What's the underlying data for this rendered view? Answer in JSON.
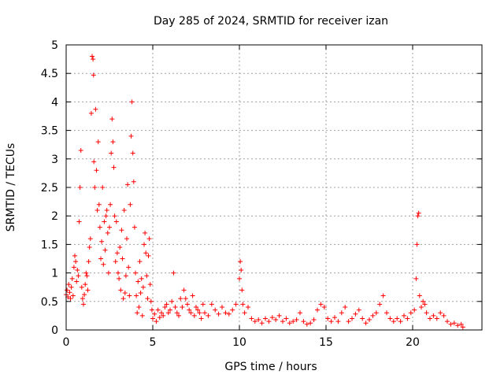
{
  "chart_data": {
    "type": "scatter",
    "title": "Day 285 of 2024, SRMTID for receiver izan",
    "xlabel": "GPS time / hours",
    "ylabel": "SRMTID / TECUs",
    "xlim": [
      0,
      24
    ],
    "ylim": [
      0,
      5
    ],
    "x_ticks": [
      0,
      5,
      10,
      15,
      20
    ],
    "x_tick_labels": [
      "0",
      "5",
      "10",
      "15",
      "20"
    ],
    "y_ticks": [
      0,
      0.5,
      1,
      1.5,
      2,
      2.5,
      3,
      3.5,
      4,
      4.5,
      5
    ],
    "y_tick_labels": [
      "0",
      "0.5",
      "1",
      "1.5",
      "2",
      "2.5",
      "3",
      "3.5",
      "4",
      "4.5",
      "5"
    ],
    "grid": true,
    "marker": "+",
    "series": [
      {
        "name": "SRMTID",
        "color": "#ff0000",
        "points": [
          [
            0.0,
            0.62
          ],
          [
            0.05,
            0.7
          ],
          [
            0.1,
            0.58
          ],
          [
            0.15,
            0.8
          ],
          [
            0.2,
            0.66
          ],
          [
            0.25,
            0.55
          ],
          [
            0.3,
            0.75
          ],
          [
            0.35,
            0.9
          ],
          [
            0.4,
            0.6
          ],
          [
            0.45,
            1.1
          ],
          [
            0.5,
            1.3
          ],
          [
            0.55,
            1.2
          ],
          [
            0.6,
            0.85
          ],
          [
            0.65,
            1.05
          ],
          [
            0.7,
            0.95
          ],
          [
            0.75,
            1.9
          ],
          [
            0.8,
            2.5
          ],
          [
            0.85,
            3.15
          ],
          [
            0.9,
            0.75
          ],
          [
            0.95,
            0.55
          ],
          [
            1.0,
            0.45
          ],
          [
            1.05,
            0.62
          ],
          [
            1.1,
            0.8
          ],
          [
            1.15,
            1.0
          ],
          [
            1.2,
            0.95
          ],
          [
            1.25,
            0.7
          ],
          [
            1.3,
            1.2
          ],
          [
            1.35,
            1.45
          ],
          [
            1.4,
            1.6
          ],
          [
            1.45,
            3.8
          ],
          [
            1.5,
            4.8
          ],
          [
            1.55,
            4.75
          ],
          [
            1.58,
            4.47
          ],
          [
            1.6,
            2.95
          ],
          [
            1.65,
            2.5
          ],
          [
            1.7,
            3.87
          ],
          [
            1.75,
            2.8
          ],
          [
            1.8,
            2.1
          ],
          [
            1.85,
            3.3
          ],
          [
            1.9,
            2.2
          ],
          [
            1.95,
            1.8
          ],
          [
            2.0,
            1.25
          ],
          [
            2.05,
            1.55
          ],
          [
            2.1,
            2.5
          ],
          [
            2.15,
            1.15
          ],
          [
            2.2,
            1.9
          ],
          [
            2.25,
            1.4
          ],
          [
            2.3,
            2.0
          ],
          [
            2.35,
            2.1
          ],
          [
            2.4,
            1.7
          ],
          [
            2.45,
            1.0
          ],
          [
            2.5,
            1.8
          ],
          [
            2.55,
            2.2
          ],
          [
            2.6,
            3.1
          ],
          [
            2.65,
            3.7
          ],
          [
            2.7,
            3.3
          ],
          [
            2.75,
            2.85
          ],
          [
            2.8,
            2.0
          ],
          [
            2.85,
            1.2
          ],
          [
            2.9,
            1.9
          ],
          [
            2.95,
            1.35
          ],
          [
            3.0,
            1.0
          ],
          [
            3.05,
            0.9
          ],
          [
            3.1,
            1.45
          ],
          [
            3.15,
            0.7
          ],
          [
            3.2,
            1.75
          ],
          [
            3.25,
            1.25
          ],
          [
            3.3,
            0.55
          ],
          [
            3.35,
            2.1
          ],
          [
            3.4,
            0.65
          ],
          [
            3.45,
            0.95
          ],
          [
            3.5,
            1.6
          ],
          [
            3.55,
            2.55
          ],
          [
            3.6,
            1.1
          ],
          [
            3.65,
            0.6
          ],
          [
            3.7,
            2.2
          ],
          [
            3.75,
            3.4
          ],
          [
            3.8,
            4.0
          ],
          [
            3.85,
            3.1
          ],
          [
            3.9,
            2.6
          ],
          [
            3.95,
            1.8
          ],
          [
            4.0,
            1.0
          ],
          [
            4.05,
            0.6
          ],
          [
            4.1,
            0.3
          ],
          [
            4.15,
            0.85
          ],
          [
            4.2,
            0.4
          ],
          [
            4.25,
            1.2
          ],
          [
            4.3,
            0.65
          ],
          [
            4.35,
            0.9
          ],
          [
            4.4,
            0.25
          ],
          [
            4.45,
            0.75
          ],
          [
            4.5,
            1.5
          ],
          [
            4.55,
            1.7
          ],
          [
            4.6,
            1.35
          ],
          [
            4.65,
            0.95
          ],
          [
            4.7,
            0.55
          ],
          [
            4.75,
            1.3
          ],
          [
            4.8,
            1.6
          ],
          [
            4.85,
            0.8
          ],
          [
            4.9,
            0.5
          ],
          [
            4.95,
            0.35
          ],
          [
            5.0,
            0.2
          ],
          [
            5.1,
            0.28
          ],
          [
            5.2,
            0.15
          ],
          [
            5.3,
            0.35
          ],
          [
            5.4,
            0.22
          ],
          [
            5.5,
            0.3
          ],
          [
            5.6,
            0.25
          ],
          [
            5.7,
            0.4
          ],
          [
            5.8,
            0.45
          ],
          [
            5.9,
            0.3
          ],
          [
            6.0,
            0.35
          ],
          [
            6.1,
            0.5
          ],
          [
            6.2,
            1.0
          ],
          [
            6.3,
            0.4
          ],
          [
            6.4,
            0.3
          ],
          [
            6.5,
            0.25
          ],
          [
            6.6,
            0.55
          ],
          [
            6.7,
            0.4
          ],
          [
            6.8,
            0.7
          ],
          [
            6.9,
            0.55
          ],
          [
            7.0,
            0.45
          ],
          [
            7.1,
            0.35
          ],
          [
            7.2,
            0.3
          ],
          [
            7.3,
            0.6
          ],
          [
            7.4,
            0.25
          ],
          [
            7.5,
            0.4
          ],
          [
            7.6,
            0.35
          ],
          [
            7.7,
            0.3
          ],
          [
            7.8,
            0.2
          ],
          [
            7.9,
            0.45
          ],
          [
            8.0,
            0.3
          ],
          [
            8.2,
            0.25
          ],
          [
            8.4,
            0.45
          ],
          [
            8.6,
            0.35
          ],
          [
            8.8,
            0.28
          ],
          [
            9.0,
            0.4
          ],
          [
            9.2,
            0.3
          ],
          [
            9.4,
            0.28
          ],
          [
            9.6,
            0.35
          ],
          [
            9.8,
            0.45
          ],
          [
            10.0,
            0.9
          ],
          [
            10.05,
            1.2
          ],
          [
            10.1,
            1.05
          ],
          [
            10.15,
            0.7
          ],
          [
            10.2,
            0.45
          ],
          [
            10.3,
            0.3
          ],
          [
            10.5,
            0.4
          ],
          [
            10.7,
            0.2
          ],
          [
            10.9,
            0.15
          ],
          [
            11.1,
            0.18
          ],
          [
            11.3,
            0.12
          ],
          [
            11.5,
            0.2
          ],
          [
            11.7,
            0.15
          ],
          [
            11.9,
            0.22
          ],
          [
            12.1,
            0.18
          ],
          [
            12.3,
            0.25
          ],
          [
            12.5,
            0.15
          ],
          [
            12.7,
            0.2
          ],
          [
            12.9,
            0.12
          ],
          [
            13.1,
            0.15
          ],
          [
            13.3,
            0.18
          ],
          [
            13.5,
            0.3
          ],
          [
            13.7,
            0.15
          ],
          [
            13.9,
            0.1
          ],
          [
            14.1,
            0.12
          ],
          [
            14.3,
            0.18
          ],
          [
            14.5,
            0.35
          ],
          [
            14.7,
            0.45
          ],
          [
            14.9,
            0.4
          ],
          [
            15.1,
            0.2
          ],
          [
            15.3,
            0.15
          ],
          [
            15.5,
            0.22
          ],
          [
            15.7,
            0.15
          ],
          [
            15.9,
            0.3
          ],
          [
            16.1,
            0.4
          ],
          [
            16.3,
            0.15
          ],
          [
            16.5,
            0.2
          ],
          [
            16.7,
            0.28
          ],
          [
            16.9,
            0.35
          ],
          [
            17.1,
            0.2
          ],
          [
            17.3,
            0.12
          ],
          [
            17.5,
            0.18
          ],
          [
            17.7,
            0.25
          ],
          [
            17.9,
            0.3
          ],
          [
            18.1,
            0.45
          ],
          [
            18.3,
            0.6
          ],
          [
            18.5,
            0.3
          ],
          [
            18.7,
            0.2
          ],
          [
            18.9,
            0.15
          ],
          [
            19.1,
            0.2
          ],
          [
            19.3,
            0.15
          ],
          [
            19.5,
            0.25
          ],
          [
            19.7,
            0.2
          ],
          [
            19.9,
            0.3
          ],
          [
            20.1,
            0.35
          ],
          [
            20.2,
            0.9
          ],
          [
            20.25,
            1.5
          ],
          [
            20.3,
            2.0
          ],
          [
            20.35,
            2.05
          ],
          [
            20.4,
            0.6
          ],
          [
            20.5,
            0.4
          ],
          [
            20.6,
            0.5
          ],
          [
            20.7,
            0.45
          ],
          [
            20.8,
            0.3
          ],
          [
            21.0,
            0.2
          ],
          [
            21.2,
            0.25
          ],
          [
            21.4,
            0.2
          ],
          [
            21.6,
            0.3
          ],
          [
            21.8,
            0.25
          ],
          [
            22.0,
            0.15
          ],
          [
            22.2,
            0.1
          ],
          [
            22.4,
            0.12
          ],
          [
            22.6,
            0.08
          ],
          [
            22.8,
            0.1
          ],
          [
            22.9,
            0.05
          ]
        ]
      }
    ]
  }
}
